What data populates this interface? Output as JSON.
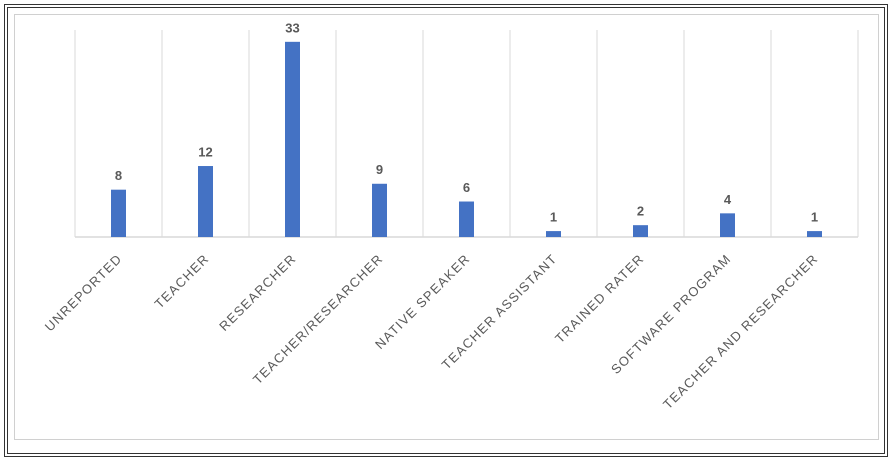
{
  "chart_data": {
    "type": "bar",
    "categories": [
      "UNREPORTED",
      "TEACHER",
      "RESEARCHER",
      "TEACHER/RESEARCHER",
      "NATIVE SPEAKER",
      "TEACHER ASSISTANT",
      "TRAINED RATER",
      "SOFTWARE PROGRAM",
      "TEACHER AND RESEARCHER"
    ],
    "values": [
      8,
      12,
      33,
      9,
      6,
      1,
      2,
      4,
      1
    ],
    "color": "#4472c4",
    "ylim": [
      0,
      35
    ],
    "grid": true
  }
}
